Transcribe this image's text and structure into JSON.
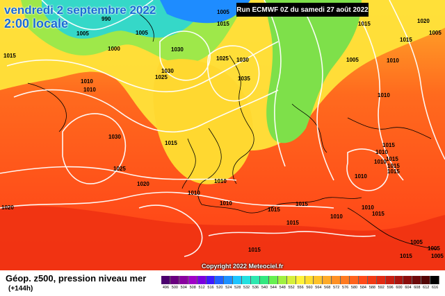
{
  "overlay": {
    "title_line1": "vendredi 2 septembre 2022",
    "title_line2": "2:00 locale",
    "run": "Run ECMWF 0Z du samedi 27 août 2022",
    "copyright": "Copyright 2022 Meteociel.fr"
  },
  "footer": {
    "label": "Géop. z500, pression niveau mer",
    "sub": "(+144h)"
  },
  "scale": {
    "values": [
      "496",
      "500",
      "504",
      "508",
      "512",
      "516",
      "520",
      "524",
      "528",
      "532",
      "536",
      "540",
      "544",
      "548",
      "552",
      "556",
      "560",
      "564",
      "568",
      "572",
      "576",
      "580",
      "584",
      "588",
      "592",
      "596",
      "600",
      "604",
      "608",
      "612",
      "616"
    ],
    "colors": [
      "#4b006e",
      "#6a007f",
      "#8a00a0",
      "#a000c8",
      "#7a00e0",
      "#3d1aff",
      "#2060ff",
      "#1e90ff",
      "#1ec4ff",
      "#23e0e0",
      "#2ee8b0",
      "#33e880",
      "#66f050",
      "#a0f040",
      "#d6f03a",
      "#fff23a",
      "#ffdc2e",
      "#ffc22a",
      "#ffaa28",
      "#ff9024",
      "#ff7a20",
      "#ff621c",
      "#ff4a18",
      "#f23a14",
      "#e22a12",
      "#c81e10",
      "#aa140e",
      "#8c0e0c",
      "#6e0a0a",
      "#520606",
      "#000000"
    ]
  },
  "isobars": [
    {
      "label": "1015",
      "color": "#000"
    },
    {
      "label": "1005",
      "color": "#000"
    },
    {
      "label": "1000",
      "color": "#000"
    },
    {
      "label": "1010",
      "color": "#000"
    },
    {
      "label": "990",
      "color": "#000"
    },
    {
      "label": "1005",
      "color": "#000"
    },
    {
      "label": "1030",
      "color": "#000"
    },
    {
      "label": "1030",
      "color": "#000"
    },
    {
      "label": "1025",
      "color": "#000"
    },
    {
      "label": "1030",
      "color": "#000"
    },
    {
      "label": "1035",
      "color": "#000"
    },
    {
      "label": "1025",
      "color": "#000"
    },
    {
      "label": "1030",
      "color": "#000"
    },
    {
      "label": "1015",
      "color": "#000"
    },
    {
      "label": "1025",
      "color": "#000"
    },
    {
      "label": "1020",
      "color": "#000"
    },
    {
      "label": "1010",
      "color": "#000"
    },
    {
      "label": "1010",
      "color": "#000"
    },
    {
      "label": "1010",
      "color": "#000"
    },
    {
      "label": "1005",
      "color": "#000"
    },
    {
      "label": "1015",
      "color": "#000"
    },
    {
      "label": "1010",
      "color": "#000"
    },
    {
      "label": "1015",
      "color": "#000"
    },
    {
      "label": "1015",
      "color": "#000"
    },
    {
      "label": "1015",
      "color": "#000"
    },
    {
      "label": "1010",
      "color": "#000"
    },
    {
      "label": "1010",
      "color": "#000"
    },
    {
      "label": "1020",
      "color": "#000"
    },
    {
      "label": "1015",
      "color": "#000"
    },
    {
      "label": "1020",
      "color": "#000"
    },
    {
      "label": "1010",
      "color": "#000"
    },
    {
      "label": "1015",
      "color": "#000"
    },
    {
      "label": "1005",
      "color": "#000"
    },
    {
      "label": "1005",
      "color": "#000"
    },
    {
      "label": "1010",
      "color": "#000"
    },
    {
      "label": "1015",
      "color": "#000"
    },
    {
      "label": "1010",
      "color": "#000"
    },
    {
      "label": "1015",
      "color": "#000"
    },
    {
      "label": "1010",
      "color": "#000"
    },
    {
      "label": "1015",
      "color": "#000"
    },
    {
      "label": "1005",
      "color": "#000"
    },
    {
      "label": "1015",
      "color": "#000"
    },
    {
      "label": "1015",
      "color": "#000"
    },
    {
      "label": "1015",
      "color": "#000"
    },
    {
      "label": "1005",
      "color": "#000"
    },
    {
      "label": "1005",
      "color": "#000"
    },
    {
      "label": "1015",
      "color": "#000"
    },
    {
      "label": "1010",
      "color": "#000"
    }
  ]
}
